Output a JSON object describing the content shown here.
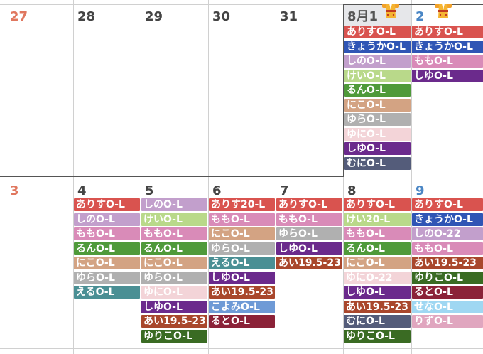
{
  "colors": {
    "arisu": "#d9534f",
    "kyouka": "#2f55b5",
    "shino": "#c29fcc",
    "kei": "#b9d98a",
    "run": "#4f9a3a",
    "niko": "#d3a383",
    "yura": "#b0b0b0",
    "yuni": "#f3d4d8",
    "shiyu": "#6b2a8c",
    "muni": "#545c7a",
    "momo": "#d98bb8",
    "eru": "#4a8f94",
    "ai": "#a9472c",
    "koyomi": "#6e9ad6",
    "ruto": "#8b2238",
    "yuriko": "#3a6b23",
    "sena": "#9fd7f2",
    "rizu": "#e0a6bf"
  },
  "week1": {
    "days": [
      "27",
      "28",
      "29",
      "30",
      "31",
      "8月1",
      "2"
    ],
    "events_aug1": [
      {
        "label": "ありすO-L",
        "color": "#d9534f"
      },
      {
        "label": "きょうかO-L",
        "color": "#2f55b5"
      },
      {
        "label": "しのO-L",
        "color": "#c29fcc"
      },
      {
        "label": "けいO-L",
        "color": "#b9d98a"
      },
      {
        "label": "るんO-L",
        "color": "#4f9a3a"
      },
      {
        "label": "にこO-L",
        "color": "#d3a383"
      },
      {
        "label": "ゆらO-L",
        "color": "#b0b0b0"
      },
      {
        "label": "ゆにO-L",
        "color": "#f3d4d8"
      },
      {
        "label": "しゆO-L",
        "color": "#6b2a8c"
      },
      {
        "label": "むにO-L",
        "color": "#545c7a"
      }
    ],
    "events_aug2": [
      {
        "label": "ありすO-L",
        "color": "#d9534f"
      },
      {
        "label": "きょうかO-L",
        "color": "#2f55b5"
      },
      {
        "label": "ももO-L",
        "color": "#d98bb8"
      },
      {
        "label": "しゆO-L",
        "color": "#6b2a8c"
      }
    ]
  },
  "week2": {
    "days": [
      "3",
      "4",
      "5",
      "6",
      "7",
      "8",
      "9"
    ],
    "events": [
      [],
      [
        {
          "label": "ありすO-L",
          "color": "#d9534f"
        },
        {
          "label": "しのO-L",
          "color": "#c29fcc"
        },
        {
          "label": "ももO-L",
          "color": "#d98bb8"
        },
        {
          "label": "るんO-L",
          "color": "#4f9a3a"
        },
        {
          "label": "にこO-L",
          "color": "#d3a383"
        },
        {
          "label": "ゆらO-L",
          "color": "#b0b0b0"
        },
        {
          "label": "えるO-L",
          "color": "#4a8f94"
        }
      ],
      [
        {
          "label": "しのO-L",
          "color": "#c29fcc"
        },
        {
          "label": "けいO-L",
          "color": "#b9d98a"
        },
        {
          "label": "ももO-L",
          "color": "#d98bb8"
        },
        {
          "label": "るんO-L",
          "color": "#4f9a3a"
        },
        {
          "label": "にこO-L",
          "color": "#d3a383"
        },
        {
          "label": "ゆらO-L",
          "color": "#b0b0b0"
        },
        {
          "label": "ゆにO-L",
          "color": "#f3d4d8"
        },
        {
          "label": "しゆO-L",
          "color": "#6b2a8c"
        },
        {
          "label": "あい19.5-23",
          "color": "#a9472c"
        },
        {
          "label": "ゆりこO-L",
          "color": "#3a6b23"
        }
      ],
      [
        {
          "label": "ありす20-L",
          "color": "#d9534f"
        },
        {
          "label": "ももO-L",
          "color": "#d98bb8"
        },
        {
          "label": "にこO-L",
          "color": "#d3a383"
        },
        {
          "label": "ゆらO-L",
          "color": "#b0b0b0"
        },
        {
          "label": "えるO-L",
          "color": "#4a8f94"
        },
        {
          "label": "しゆO-L",
          "color": "#6b2a8c"
        },
        {
          "label": "あい19.5-23",
          "color": "#a9472c"
        },
        {
          "label": "こよみO-L",
          "color": "#6e9ad6"
        },
        {
          "label": "るとO-L",
          "color": "#8b2238"
        }
      ],
      [
        {
          "label": "ありすO-L",
          "color": "#d9534f"
        },
        {
          "label": "ももO-L",
          "color": "#d98bb8"
        },
        {
          "label": "ゆらO-L",
          "color": "#b0b0b0"
        },
        {
          "label": "しゆO-L",
          "color": "#6b2a8c"
        },
        {
          "label": "あい19.5-23",
          "color": "#a9472c"
        }
      ],
      [
        {
          "label": "ありすO-L",
          "color": "#d9534f"
        },
        {
          "label": "けい20-L",
          "color": "#b9d98a"
        },
        {
          "label": "ももO-L",
          "color": "#d98bb8"
        },
        {
          "label": "るんO-L",
          "color": "#4f9a3a"
        },
        {
          "label": "にこO-L",
          "color": "#d3a383"
        },
        {
          "label": "ゆにO-22",
          "color": "#f3d4d8"
        },
        {
          "label": "しゆO-L",
          "color": "#6b2a8c"
        },
        {
          "label": "あい19.5-23",
          "color": "#a9472c"
        },
        {
          "label": "むにO-L",
          "color": "#545c7a"
        },
        {
          "label": "ゆりこO-L",
          "color": "#3a6b23"
        }
      ],
      [
        {
          "label": "ありすO-L",
          "color": "#d9534f"
        },
        {
          "label": "きょうかO-L",
          "color": "#2f55b5"
        },
        {
          "label": "しのO-22",
          "color": "#c29fcc"
        },
        {
          "label": "ももO-L",
          "color": "#d98bb8"
        },
        {
          "label": "あい19.5-23",
          "color": "#a9472c"
        },
        {
          "label": "ゆりこO-L",
          "color": "#3a6b23"
        },
        {
          "label": "るとO-L",
          "color": "#8b2238"
        },
        {
          "label": "せなO-L",
          "color": "#9fd7f2"
        },
        {
          "label": "りずO-L",
          "color": "#e0a6bf"
        }
      ]
    ]
  },
  "icons": {
    "holiday": "kimono-icon"
  }
}
